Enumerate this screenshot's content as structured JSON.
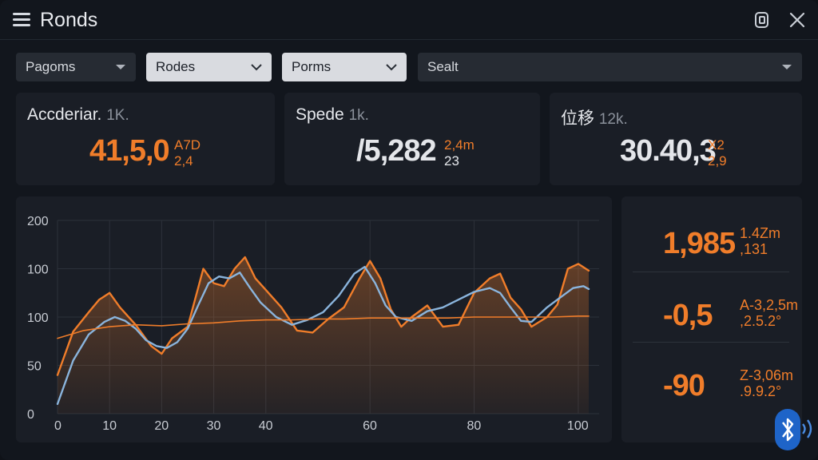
{
  "app": {
    "title": "Ronds"
  },
  "filters": [
    {
      "label": "Pagoms"
    },
    {
      "label": "Rodes"
    },
    {
      "label": "Porms"
    },
    {
      "label": "Sealt"
    }
  ],
  "stats": [
    {
      "title": "Accderiar.",
      "subtitle": "1K.",
      "value": "41,5,0",
      "side_top": "A7D",
      "side_bottom": "2,4"
    },
    {
      "title": "Spede",
      "subtitle": "1k.",
      "value": "/5,282",
      "side_top": "2,4m",
      "side_bottom": "23"
    },
    {
      "title": "位移",
      "subtitle": "12k.",
      "value": "30.40,3",
      "side_top": "X2",
      "side_bottom": "2,9"
    }
  ],
  "side": [
    {
      "value": "1,985",
      "top": "1.4Zm",
      "bottom": ",131"
    },
    {
      "value": "-0,5",
      "top": "A-3,2,5m",
      "bottom": ",2.5.2°"
    },
    {
      "value": "-90",
      "top": "Z-3,06m",
      "bottom": ".9.9.2°"
    }
  ],
  "colors": {
    "orange": "#f07d2a",
    "blue": "#8ab4dc",
    "background": "#12161d",
    "card": "#1a1e26"
  },
  "icons": {
    "menu": "hamburger-icon",
    "restore": "restore-icon",
    "close": "close-icon",
    "bluetooth": "bluetooth-icon"
  },
  "chart_data": {
    "type": "line",
    "x_ticks": [
      0,
      10,
      20,
      30,
      40,
      60,
      80,
      100
    ],
    "y_ticks": [
      "0",
      "50",
      "100",
      "100",
      "200"
    ],
    "grid": true,
    "series": [
      {
        "color": "#f07d2a",
        "points": [
          [
            0,
            40
          ],
          [
            3,
            85
          ],
          [
            6,
            105
          ],
          [
            8,
            118
          ],
          [
            10,
            125
          ],
          [
            12,
            110
          ],
          [
            15,
            92
          ],
          [
            18,
            70
          ],
          [
            20,
            62
          ],
          [
            22,
            78
          ],
          [
            25,
            90
          ],
          [
            28,
            150
          ],
          [
            30,
            135
          ],
          [
            32,
            132
          ],
          [
            34,
            150
          ],
          [
            36,
            162
          ],
          [
            38,
            140
          ],
          [
            40,
            128
          ],
          [
            43,
            110
          ],
          [
            46,
            86
          ],
          [
            49,
            84
          ],
          [
            52,
            98
          ],
          [
            55,
            110
          ],
          [
            58,
            140
          ],
          [
            60,
            158
          ],
          [
            62,
            140
          ],
          [
            64,
            108
          ],
          [
            66,
            90
          ],
          [
            68,
            100
          ],
          [
            71,
            112
          ],
          [
            74,
            90
          ],
          [
            77,
            92
          ],
          [
            80,
            125
          ],
          [
            83,
            140
          ],
          [
            85,
            145
          ],
          [
            87,
            120
          ],
          [
            89,
            108
          ],
          [
            91,
            90
          ],
          [
            94,
            100
          ],
          [
            96,
            113
          ],
          [
            98,
            150
          ],
          [
            100,
            155
          ],
          [
            102,
            148
          ]
        ]
      },
      {
        "color": "#8ab4dc",
        "points": [
          [
            0,
            10
          ],
          [
            3,
            55
          ],
          [
            6,
            82
          ],
          [
            9,
            95
          ],
          [
            11,
            100
          ],
          [
            13,
            96
          ],
          [
            15,
            88
          ],
          [
            17,
            76
          ],
          [
            19,
            70
          ],
          [
            21,
            68
          ],
          [
            23,
            74
          ],
          [
            25,
            88
          ],
          [
            27,
            112
          ],
          [
            29,
            135
          ],
          [
            31,
            142
          ],
          [
            33,
            140
          ],
          [
            35,
            146
          ],
          [
            37,
            130
          ],
          [
            39,
            115
          ],
          [
            42,
            100
          ],
          [
            45,
            92
          ],
          [
            48,
            97
          ],
          [
            51,
            105
          ],
          [
            54,
            122
          ],
          [
            57,
            145
          ],
          [
            59,
            152
          ],
          [
            61,
            135
          ],
          [
            63,
            112
          ],
          [
            65,
            100
          ],
          [
            68,
            96
          ],
          [
            71,
            106
          ],
          [
            74,
            110
          ],
          [
            77,
            118
          ],
          [
            80,
            126
          ],
          [
            83,
            130
          ],
          [
            85,
            125
          ],
          [
            87,
            110
          ],
          [
            89,
            96
          ],
          [
            91,
            95
          ],
          [
            94,
            110
          ],
          [
            96,
            118
          ],
          [
            99,
            130
          ],
          [
            101,
            132
          ],
          [
            102,
            129
          ]
        ]
      },
      {
        "color": "#f07d2a",
        "points": [
          [
            0,
            78
          ],
          [
            5,
            86
          ],
          [
            10,
            90
          ],
          [
            15,
            92
          ],
          [
            20,
            91
          ],
          [
            25,
            93
          ],
          [
            30,
            94
          ],
          [
            35,
            96
          ],
          [
            40,
            97
          ],
          [
            45,
            97
          ],
          [
            50,
            98
          ],
          [
            55,
            98
          ],
          [
            60,
            99
          ],
          [
            65,
            99
          ],
          [
            70,
            99
          ],
          [
            75,
            99
          ],
          [
            80,
            100
          ],
          [
            85,
            100
          ],
          [
            90,
            100
          ],
          [
            95,
            100
          ],
          [
            100,
            101
          ],
          [
            102,
            101
          ]
        ]
      }
    ]
  }
}
